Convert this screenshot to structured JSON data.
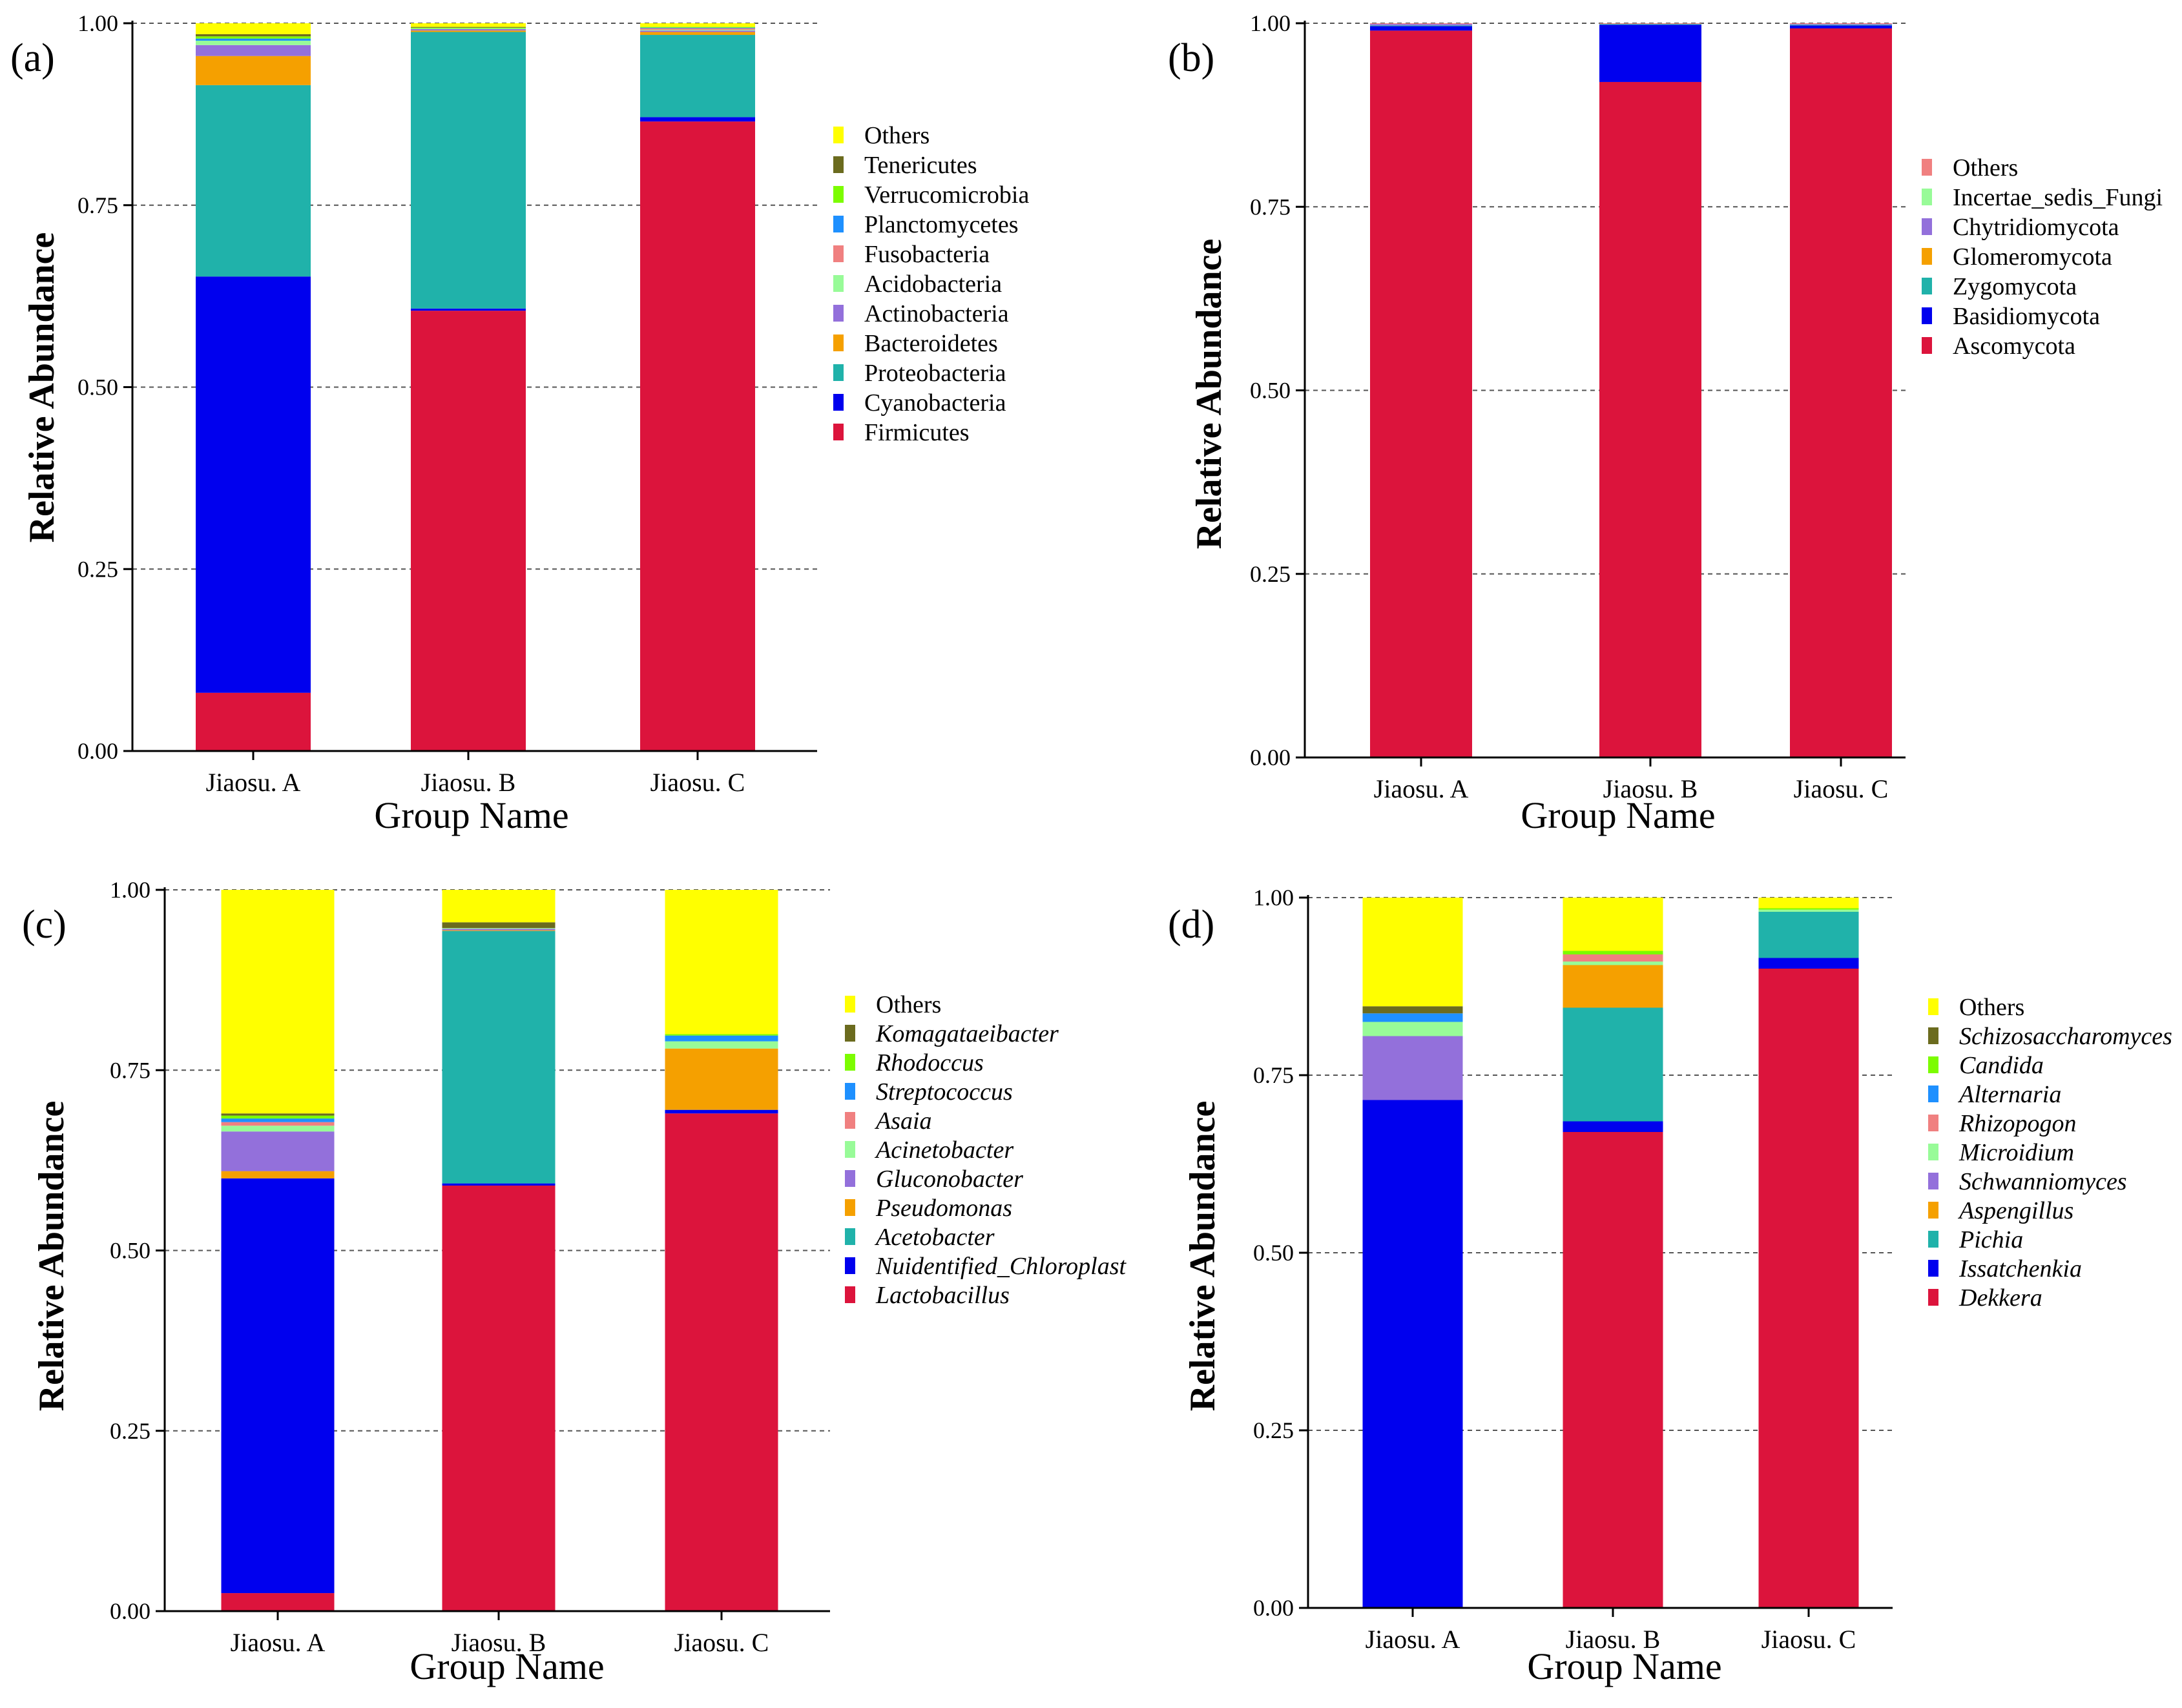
{
  "chart_data": [
    {
      "type": "bar",
      "stacked": true,
      "panel_label": "(a)",
      "xlabel": "Group Name",
      "ylabel": "Relative Abundance",
      "ylim": [
        0,
        1
      ],
      "yticks": [
        "0.00",
        "0.25",
        "0.50",
        "0.75",
        "1.00"
      ],
      "grid": true,
      "legend_position": "right",
      "legend_italic": false,
      "categories": [
        "Jiaosu. A",
        "Jiaosu. B",
        "Jiaosu. C"
      ],
      "series": [
        {
          "name": "Firmicutes",
          "color": "#dc143c",
          "values": [
            0.08,
            0.605,
            0.865
          ]
        },
        {
          "name": "Cyanobacteria",
          "color": "#0000ee",
          "values": [
            0.572,
            0.003,
            0.006
          ]
        },
        {
          "name": "Proteobacteria",
          "color": "#20b2aa",
          "values": [
            0.263,
            0.38,
            0.113
          ]
        },
        {
          "name": "Bacteroidetes",
          "color": "#f5a000",
          "values": [
            0.04,
            0.002,
            0.004
          ]
        },
        {
          "name": "Actinobacteria",
          "color": "#9370db",
          "values": [
            0.015,
            0.002,
            0.002
          ]
        },
        {
          "name": "Acidobacteria",
          "color": "#98fb98",
          "values": [
            0.006,
            0.001,
            0.001
          ]
        },
        {
          "name": "Fusobacteria",
          "color": "#f08080",
          "values": [
            0.0,
            0.0,
            0.002
          ]
        },
        {
          "name": "Planctomycetes",
          "color": "#1e90ff",
          "values": [
            0.003,
            0.0,
            0.001
          ]
        },
        {
          "name": "Verrucomicrobia",
          "color": "#7cfc00",
          "values": [
            0.003,
            0.001,
            0.001
          ]
        },
        {
          "name": "Tenericutes",
          "color": "#6b6b1e",
          "values": [
            0.003,
            0.001,
            0.0
          ]
        },
        {
          "name": "Others",
          "color": "#ffff00",
          "values": [
            0.015,
            0.005,
            0.005
          ]
        }
      ]
    },
    {
      "type": "bar",
      "stacked": true,
      "panel_label": "(b)",
      "xlabel": "Group Name",
      "ylabel": "Relative Abundance",
      "ylim": [
        0,
        1
      ],
      "yticks": [
        "0.00",
        "0.25",
        "0.50",
        "0.75",
        "1.00"
      ],
      "grid": true,
      "legend_position": "right",
      "legend_italic": false,
      "categories": [
        "Jiaosu. A",
        "Jiaosu. B",
        "Jiaosu. C"
      ],
      "series": [
        {
          "name": "Ascomycota",
          "color": "#dc143c",
          "values": [
            0.99,
            0.92,
            0.993
          ]
        },
        {
          "name": "Basidiomycota",
          "color": "#0000ee",
          "values": [
            0.006,
            0.078,
            0.004
          ]
        },
        {
          "name": "Zygomycota",
          "color": "#20b2aa",
          "values": [
            0.001,
            0.001,
            0.001
          ]
        },
        {
          "name": "Glomeromycota",
          "color": "#f5a000",
          "values": [
            0.0,
            0.0,
            0.0
          ]
        },
        {
          "name": "Chytridiomycota",
          "color": "#9370db",
          "values": [
            0.002,
            0.0,
            0.001
          ]
        },
        {
          "name": "Incertae_sedis_Fungi",
          "color": "#98fb98",
          "values": [
            0.0,
            0.0,
            0.0
          ]
        },
        {
          "name": "Others",
          "color": "#f08080",
          "values": [
            0.001,
            0.001,
            0.001
          ]
        }
      ]
    },
    {
      "type": "bar",
      "stacked": true,
      "panel_label": "(c)",
      "xlabel": "Group Name",
      "ylabel": "Relative Abundance",
      "ylim": [
        0,
        1
      ],
      "yticks": [
        "0.00",
        "0.25",
        "0.50",
        "0.75",
        "1.00"
      ],
      "grid": true,
      "legend_position": "right",
      "legend_italic": true,
      "categories": [
        "Jiaosu. A",
        "Jiaosu. B",
        "Jiaosu. C"
      ],
      "series": [
        {
          "name": "Lactobacillus",
          "color": "#dc143c",
          "values": [
            0.025,
            0.59,
            0.69
          ]
        },
        {
          "name": "Nuidentified_Chloroplast",
          "color": "#0000ee",
          "values": [
            0.575,
            0.003,
            0.005
          ]
        },
        {
          "name": "Acetobacter",
          "color": "#20b2aa",
          "values": [
            0.0,
            0.35,
            0.0
          ]
        },
        {
          "name": "Pseudomonas",
          "color": "#f5a000",
          "values": [
            0.01,
            0.001,
            0.085
          ]
        },
        {
          "name": "Gluconobacter",
          "color": "#9370db",
          "values": [
            0.055,
            0.002,
            0.0
          ]
        },
        {
          "name": "Acinetobacter",
          "color": "#98fb98",
          "values": [
            0.008,
            0.001,
            0.01
          ]
        },
        {
          "name": "Asaia",
          "color": "#f08080",
          "values": [
            0.005,
            0.0,
            0.0
          ]
        },
        {
          "name": "Streptococcus",
          "color": "#1e90ff",
          "values": [
            0.005,
            0.0,
            0.008
          ]
        },
        {
          "name": "Rhodoccus",
          "color": "#7cfc00",
          "values": [
            0.004,
            0.0,
            0.002
          ]
        },
        {
          "name": "Komagataeibacter",
          "color": "#6b6b1e",
          "values": [
            0.003,
            0.008,
            0.0
          ]
        },
        {
          "name": "Others",
          "color": "#ffff00",
          "values": [
            0.31,
            0.045,
            0.2
          ]
        }
      ]
    },
    {
      "type": "bar",
      "stacked": true,
      "panel_label": "(d)",
      "xlabel": "Group Name",
      "ylabel": "Relative Abundance",
      "ylim": [
        0,
        1
      ],
      "yticks": [
        "0.00",
        "0.25",
        "0.50",
        "0.75",
        "1.00"
      ],
      "grid": true,
      "legend_position": "right",
      "legend_italic": true,
      "categories": [
        "Jiaosu. A",
        "Jiaosu. B",
        "Jiaosu. C"
      ],
      "series": [
        {
          "name": "Dekkera",
          "color": "#dc143c",
          "values": [
            0.0,
            0.67,
            0.9
          ]
        },
        {
          "name": "Issatchenkia",
          "color": "#0000ee",
          "values": [
            0.715,
            0.015,
            0.015
          ]
        },
        {
          "name": "Pichia",
          "color": "#20b2aa",
          "values": [
            0.0,
            0.16,
            0.065
          ]
        },
        {
          "name": "Aspengillus",
          "color": "#f5a000",
          "values": [
            0.0,
            0.06,
            0.0
          ]
        },
        {
          "name": "Schwanniomyces",
          "color": "#9370db",
          "values": [
            0.09,
            0.0,
            0.0
          ]
        },
        {
          "name": "Microidium",
          "color": "#98fb98",
          "values": [
            0.02,
            0.005,
            0.003
          ]
        },
        {
          "name": "Rhizopogon",
          "color": "#f08080",
          "values": [
            0.0,
            0.01,
            0.0
          ]
        },
        {
          "name": "Alternaria",
          "color": "#1e90ff",
          "values": [
            0.012,
            0.0,
            0.0
          ]
        },
        {
          "name": "Candida",
          "color": "#7cfc00",
          "values": [
            0.0,
            0.005,
            0.002
          ]
        },
        {
          "name": "Schizosaccharomyces",
          "color": "#6b6b1e",
          "values": [
            0.01,
            0.0,
            0.0
          ]
        },
        {
          "name": "Others",
          "color": "#ffff00",
          "values": [
            0.153,
            0.075,
            0.015
          ]
        }
      ]
    }
  ]
}
